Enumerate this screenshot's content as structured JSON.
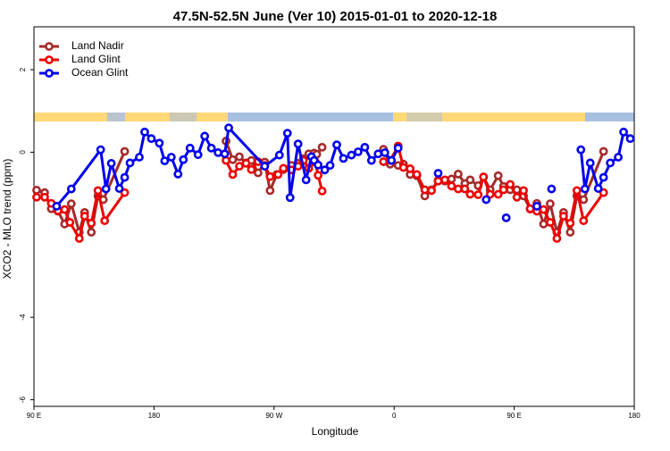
{
  "chart_data": {
    "type": "line",
    "title": "47.5N-52.5N June (Ver 10)   2015-01-01 to 2020-12-18",
    "x_label": "Longitude",
    "y_label": "XCO2 - MLO trend (ppm)",
    "xlim": [
      90,
      540
    ],
    "ylim": [
      -6.16,
      3.04
    ],
    "xticks": [
      {
        "value": 90,
        "label": "90 E"
      },
      {
        "value": 180,
        "label": "180"
      },
      {
        "value": 270,
        "label": "90 W"
      },
      {
        "value": 360,
        "label": "0"
      },
      {
        "value": 450,
        "label": "90 E"
      },
      {
        "value": 540,
        "label": "180"
      }
    ],
    "yticks": [
      -6,
      -4,
      0,
      2
    ],
    "legend": "top-left",
    "series": [
      {
        "name": "Land Nadir",
        "color": "#a52a2a",
        "x": [
          92,
          98,
          103,
          108,
          113,
          118,
          124,
          128,
          133,
          138,
          142,
          158,
          null,
          234,
          239,
          244,
          249,
          253,
          258,
          263,
          267,
          272,
          277,
          283,
          288,
          292,
          296,
          300,
          302,
          306,
          null,
          352,
          357,
          363,
          367,
          372,
          377,
          383,
          388,
          393,
          398,
          403,
          408,
          413,
          417,
          423,
          427,
          432,
          438,
          442,
          447,
          452,
          457,
          462,
          467,
          472,
          477,
          482,
          487,
          492,
          497,
          502,
          517
        ],
        "values": [
          -0.92,
          -0.98,
          -1.37,
          -1.43,
          -1.74,
          -1.25,
          -1.94,
          -1.46,
          -1.94,
          -1.06,
          -1.15,
          0.02,
          null,
          0.27,
          -0.18,
          -0.11,
          -0.26,
          -0.2,
          -0.5,
          -0.24,
          -0.93,
          -0.54,
          -0.42,
          -0.32,
          -0.27,
          -0.16,
          -0.04,
          -0.02,
          -0.05,
          0.12,
          null,
          0.07,
          -0.29,
          -0.32,
          -0.29,
          -0.54,
          -0.57,
          -1.06,
          -0.91,
          -0.68,
          -0.7,
          -0.65,
          -0.53,
          -0.76,
          -0.67,
          -0.81,
          -0.6,
          -0.91,
          -0.57,
          -0.83,
          -0.91,
          -0.91,
          -1.06,
          -1.38,
          -1.24,
          -1.74,
          -1.25,
          -1.94,
          -1.46,
          -1.94,
          -1.06,
          -1.15,
          0.02
        ]
      },
      {
        "name": "Land Glint",
        "color": "#ee0000",
        "x": [
          92,
          98,
          103,
          108,
          113,
          117,
          124,
          128,
          133,
          138,
          143,
          158,
          null,
          234,
          239,
          244,
          249,
          253,
          258,
          263,
          267,
          273,
          277,
          283,
          288,
          292,
          296,
          301,
          303,
          306,
          null,
          352,
          357,
          363,
          367,
          372,
          377,
          383,
          388,
          393,
          398,
          403,
          408,
          413,
          417,
          423,
          427,
          432,
          438,
          442,
          447,
          452,
          457,
          462,
          467,
          472,
          477,
          482,
          487,
          492,
          497,
          502,
          517
        ],
        "values": [
          -1.09,
          -1.09,
          -1.24,
          -1.42,
          -1.39,
          -1.7,
          -2.09,
          -1.55,
          -1.72,
          -0.93,
          -1.66,
          -0.98,
          null,
          -0.2,
          -0.54,
          -0.34,
          -0.27,
          -0.42,
          -0.23,
          -0.32,
          -0.59,
          -0.54,
          -0.39,
          -0.43,
          -0.34,
          -0.2,
          -0.39,
          -0.24,
          -0.56,
          -0.94,
          null,
          -0.23,
          -0.2,
          0.15,
          -0.37,
          -0.4,
          -0.54,
          -0.91,
          -0.93,
          -0.7,
          -0.67,
          -0.82,
          -0.89,
          -0.89,
          -1.02,
          -1.03,
          -0.6,
          -1.02,
          -1.02,
          -0.91,
          -0.78,
          -1.09,
          -0.93,
          -1.37,
          -1.43,
          -1.39,
          -1.7,
          -2.09,
          -1.55,
          -1.72,
          -0.93,
          -1.66,
          -0.98
        ]
      },
      {
        "name": "Ocean Glint",
        "color": "#0000ee",
        "x": [
          107,
          118,
          140,
          144,
          148,
          154,
          158,
          162,
          169,
          173,
          178,
          184,
          188,
          193,
          198,
          202,
          207,
          213,
          218,
          223,
          228,
          233,
          236,
          263,
          274,
          280,
          282,
          288,
          294,
          298,
          300,
          303,
          308,
          312,
          317,
          322,
          328,
          333,
          338,
          343,
          348,
          353,
          358,
          363,
          null,
          393,
          null,
          429,
          null,
          444,
          null,
          467,
          null,
          478,
          null,
          500,
          503,
          507,
          513,
          517,
          522,
          528,
          532,
          537
        ],
        "values": [
          -1.31,
          -0.89,
          0.06,
          -0.89,
          -0.27,
          -0.88,
          -0.61,
          -0.26,
          -0.12,
          0.49,
          0.33,
          0.22,
          -0.21,
          -0.12,
          -0.53,
          -0.18,
          0.1,
          -0.06,
          0.39,
          0.1,
          -0.01,
          -0.04,
          0.59,
          -0.34,
          -0.07,
          0.46,
          -1.1,
          0.2,
          -0.67,
          -0.11,
          -0.2,
          -0.31,
          -0.43,
          -0.32,
          0.18,
          -0.15,
          -0.07,
          0.01,
          0.12,
          -0.2,
          -0.04,
          -0.01,
          -0.2,
          0.1,
          null,
          -0.51,
          null,
          -1.15,
          null,
          -1.59,
          null,
          -1.31,
          null,
          -0.89,
          null,
          0.06,
          -0.89,
          -0.26,
          -0.88,
          -0.61,
          -0.26,
          -0.12,
          0.49,
          0.33
        ]
      }
    ]
  }
}
